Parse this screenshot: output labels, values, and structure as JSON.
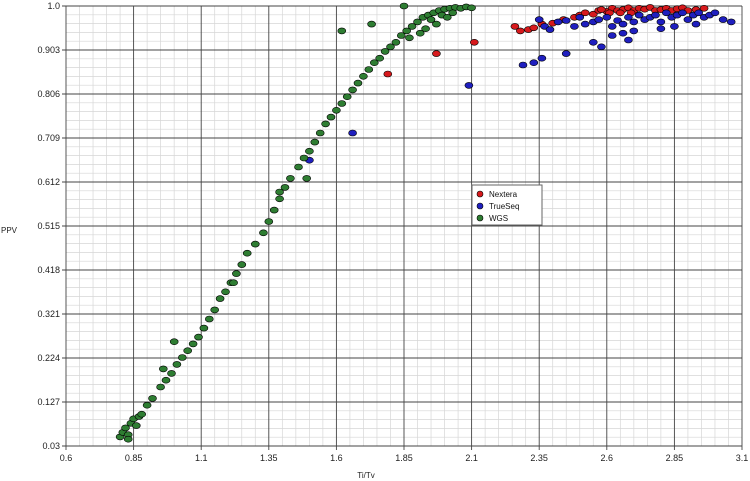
{
  "chart_data": {
    "type": "scatter",
    "title": "",
    "xlabel": "Ti/Tv",
    "ylabel": "PPV",
    "xlim": [
      0.6,
      3.1
    ],
    "ylim": [
      0.03,
      1.0
    ],
    "x_ticks": [
      "0.6",
      "0.85",
      "1.1",
      "1.35",
      "1.6",
      "1.85",
      "2.1",
      "2.35",
      "2.6",
      "2.85",
      "3.1"
    ],
    "y_ticks": [
      "0.03",
      "0.127",
      "0.224",
      "0.321",
      "0.418",
      "0.515",
      "0.612",
      "0.709",
      "0.806",
      "0.903",
      "1.0"
    ],
    "grid": true,
    "legend_position": "center-right",
    "series": [
      {
        "name": "Nextera",
        "color": "#d7191c",
        "points": [
          [
            2.26,
            0.955
          ],
          [
            2.28,
            0.945
          ],
          [
            2.31,
            0.948
          ],
          [
            2.33,
            0.952
          ],
          [
            2.36,
            0.96
          ],
          [
            2.4,
            0.962
          ],
          [
            2.44,
            0.97
          ],
          [
            2.48,
            0.975
          ],
          [
            2.5,
            0.98
          ],
          [
            2.52,
            0.985
          ],
          [
            2.55,
            0.982
          ],
          [
            2.57,
            0.99
          ],
          [
            2.6,
            0.988
          ],
          [
            2.62,
            0.995
          ],
          [
            2.64,
            0.99
          ],
          [
            2.66,
            0.992
          ],
          [
            2.68,
            0.996
          ],
          [
            2.7,
            0.99
          ],
          [
            2.72,
            0.995
          ],
          [
            2.74,
            0.993
          ],
          [
            2.76,
            0.997
          ],
          [
            2.78,
            0.99
          ],
          [
            2.8,
            0.992
          ],
          [
            2.82,
            0.995
          ],
          [
            2.84,
            0.99
          ],
          [
            2.86,
            0.994
          ],
          [
            2.88,
            0.996
          ],
          [
            2.9,
            0.99
          ],
          [
            2.93,
            0.992
          ],
          [
            2.96,
            0.995
          ],
          [
            2.58,
            0.992
          ],
          [
            2.61,
            0.985
          ],
          [
            2.65,
            0.985
          ],
          [
            2.69,
            0.985
          ],
          [
            1.79,
            0.85
          ],
          [
            1.97,
            0.895
          ],
          [
            2.11,
            0.92
          ]
        ]
      },
      {
        "name": "TrueSeq",
        "color": "#1f1fbf",
        "points": [
          [
            2.35,
            0.97
          ],
          [
            2.37,
            0.955
          ],
          [
            2.39,
            0.948
          ],
          [
            2.42,
            0.965
          ],
          [
            2.45,
            0.968
          ],
          [
            2.48,
            0.955
          ],
          [
            2.5,
            0.975
          ],
          [
            2.52,
            0.96
          ],
          [
            2.55,
            0.965
          ],
          [
            2.57,
            0.97
          ],
          [
            2.6,
            0.975
          ],
          [
            2.62,
            0.955
          ],
          [
            2.64,
            0.968
          ],
          [
            2.66,
            0.96
          ],
          [
            2.68,
            0.975
          ],
          [
            2.7,
            0.965
          ],
          [
            2.72,
            0.98
          ],
          [
            2.74,
            0.97
          ],
          [
            2.76,
            0.975
          ],
          [
            2.78,
            0.98
          ],
          [
            2.8,
            0.965
          ],
          [
            2.82,
            0.985
          ],
          [
            2.84,
            0.975
          ],
          [
            2.86,
            0.98
          ],
          [
            2.88,
            0.985
          ],
          [
            2.9,
            0.97
          ],
          [
            2.92,
            0.98
          ],
          [
            2.94,
            0.985
          ],
          [
            2.96,
            0.975
          ],
          [
            2.98,
            0.98
          ],
          [
            3.0,
            0.985
          ],
          [
            3.03,
            0.97
          ],
          [
            3.06,
            0.965
          ],
          [
            2.66,
            0.94
          ],
          [
            2.7,
            0.945
          ],
          [
            2.62,
            0.935
          ],
          [
            2.55,
            0.92
          ],
          [
            2.45,
            0.895
          ],
          [
            2.36,
            0.885
          ],
          [
            2.33,
            0.875
          ],
          [
            2.29,
            0.87
          ],
          [
            2.58,
            0.91
          ],
          [
            2.68,
            0.925
          ],
          [
            2.8,
            0.95
          ],
          [
            2.85,
            0.955
          ],
          [
            2.93,
            0.96
          ],
          [
            2.09,
            0.825
          ],
          [
            1.66,
            0.72
          ],
          [
            1.5,
            0.66
          ]
        ]
      },
      {
        "name": "WGS",
        "color": "#2e7d32",
        "points": [
          [
            0.8,
            0.05
          ],
          [
            0.81,
            0.06
          ],
          [
            0.82,
            0.07
          ],
          [
            0.83,
            0.055
          ],
          [
            0.84,
            0.08
          ],
          [
            0.85,
            0.09
          ],
          [
            0.86,
            0.075
          ],
          [
            0.87,
            0.095
          ],
          [
            0.88,
            0.1
          ],
          [
            0.9,
            0.12
          ],
          [
            0.92,
            0.135
          ],
          [
            0.95,
            0.16
          ],
          [
            0.97,
            0.175
          ],
          [
            0.99,
            0.19
          ],
          [
            1.01,
            0.21
          ],
          [
            1.03,
            0.225
          ],
          [
            1.05,
            0.24
          ],
          [
            1.07,
            0.255
          ],
          [
            1.09,
            0.27
          ],
          [
            1.11,
            0.29
          ],
          [
            1.13,
            0.31
          ],
          [
            1.15,
            0.33
          ],
          [
            1.17,
            0.355
          ],
          [
            1.19,
            0.37
          ],
          [
            1.21,
            0.39
          ],
          [
            1.23,
            0.41
          ],
          [
            1.25,
            0.43
          ],
          [
            1.27,
            0.455
          ],
          [
            1.3,
            0.475
          ],
          [
            1.33,
            0.5
          ],
          [
            1.35,
            0.525
          ],
          [
            1.37,
            0.55
          ],
          [
            1.39,
            0.575
          ],
          [
            1.41,
            0.6
          ],
          [
            1.43,
            0.62
          ],
          [
            1.46,
            0.645
          ],
          [
            1.48,
            0.665
          ],
          [
            1.5,
            0.68
          ],
          [
            1.52,
            0.7
          ],
          [
            1.54,
            0.72
          ],
          [
            1.56,
            0.74
          ],
          [
            1.58,
            0.755
          ],
          [
            1.6,
            0.77
          ],
          [
            1.62,
            0.785
          ],
          [
            1.64,
            0.8
          ],
          [
            1.66,
            0.815
          ],
          [
            1.68,
            0.83
          ],
          [
            1.7,
            0.845
          ],
          [
            1.72,
            0.86
          ],
          [
            1.74,
            0.875
          ],
          [
            1.76,
            0.885
          ],
          [
            1.78,
            0.9
          ],
          [
            1.8,
            0.91
          ],
          [
            1.82,
            0.92
          ],
          [
            1.84,
            0.935
          ],
          [
            1.86,
            0.945
          ],
          [
            1.88,
            0.955
          ],
          [
            1.9,
            0.965
          ],
          [
            1.92,
            0.975
          ],
          [
            1.94,
            0.98
          ],
          [
            1.96,
            0.985
          ],
          [
            1.98,
            0.99
          ],
          [
            2.0,
            0.993
          ],
          [
            2.02,
            0.995
          ],
          [
            2.04,
            0.997
          ],
          [
            2.06,
            0.995
          ],
          [
            2.08,
            0.998
          ],
          [
            2.1,
            0.996
          ],
          [
            1.95,
            0.97
          ],
          [
            1.97,
            0.96
          ],
          [
            1.99,
            0.98
          ],
          [
            2.01,
            0.975
          ],
          [
            2.03,
            0.985
          ],
          [
            1.93,
            0.95
          ],
          [
            1.91,
            0.94
          ],
          [
            1.87,
            0.93
          ],
          [
            1.62,
            0.945
          ],
          [
            1.73,
            0.96
          ],
          [
            1.85,
            1.0
          ],
          [
            0.96,
            0.2
          ],
          [
            1.0,
            0.26
          ],
          [
            1.22,
            0.39
          ],
          [
            1.39,
            0.59
          ],
          [
            1.49,
            0.62
          ],
          [
            0.83,
            0.045
          ]
        ]
      }
    ]
  }
}
